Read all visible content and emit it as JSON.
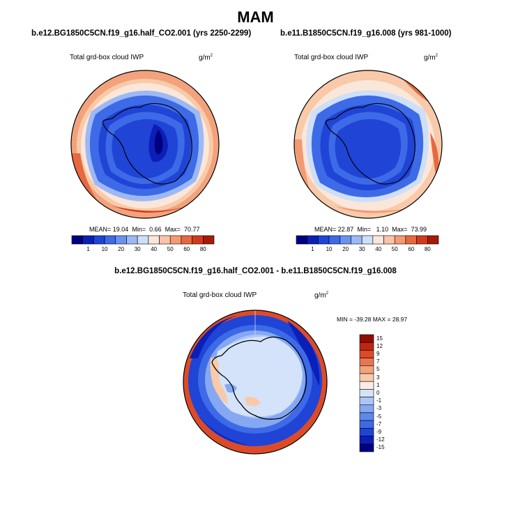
{
  "main_title": "MAM",
  "colors": {
    "levels_abs": [
      "#00007f",
      "#0b1fb8",
      "#1f44d6",
      "#3d6ae6",
      "#6a93f0",
      "#9db9f5",
      "#cddff9",
      "#fbe6da",
      "#f9c4a8",
      "#f39a72",
      "#e8683f",
      "#d33a1c",
      "#a61a0a"
    ],
    "levels_diff": [
      "#00007f",
      "#0b1fb8",
      "#1f44d6",
      "#3d6ae6",
      "#5f88ee",
      "#86a8f3",
      "#adc6f7",
      "#d4e3fa",
      "#fcece3",
      "#f8caa9",
      "#f3a27c",
      "#ea7650",
      "#dc4b28",
      "#bf2612",
      "#8f0e04"
    ],
    "continent_outline": "#000000"
  },
  "panels": [
    {
      "id": "left",
      "title": "b.e12.BG1850C5CN.f19_g16.half_CO2.001 (yrs 2250-2299)",
      "variable": "Total grd-box cloud IWP",
      "units": "g/m",
      "units_sup": "2",
      "stats": {
        "mean_label": "MEAN=",
        "mean": "19.04",
        "min_label": "Min=",
        "min": "0.66",
        "max_label": "Max=",
        "max": "70.77"
      }
    },
    {
      "id": "right",
      "title": "b.e11.B1850C5CN.f19_g16.008 (yrs 981-1000)",
      "variable": "Total grd-box cloud IWP",
      "units": "g/m",
      "units_sup": "2",
      "stats": {
        "mean_label": "MEAN=",
        "mean": "22.87",
        "min_label": "Min=",
        "min": "1.10",
        "max_label": "Max=",
        "max": "73.99"
      }
    },
    {
      "id": "diff",
      "title": "b.e12.BG1850C5CN.f19_g16.half_CO2.001 - b.e11.B1850C5CN.f19_g16.008",
      "variable": "Total grd-box cloud IWP",
      "units": "g/m",
      "units_sup": "2",
      "stats_text": "MIN = -39.28 MAX =  28.97"
    }
  ],
  "colorbar_abs_ticks": [
    "1",
    "10",
    "20",
    "30",
    "40",
    "50",
    "60",
    "80"
  ],
  "colorbar_diff_ticks": [
    "15",
    "12",
    "9",
    "7",
    "5",
    "3",
    "1",
    "0",
    "-1",
    "-3",
    "-5",
    "-7",
    "-9",
    "-12",
    "-15"
  ],
  "chart_data": [
    {
      "type": "heatmap",
      "projection": "south-polar-stereographic",
      "title": "b.e12.BG1850C5CN.f19_g16.half_CO2.001 (yrs 2250-2299)",
      "variable": "Total grd-box cloud IWP",
      "units": "g/m^2",
      "contour_levels": [
        1,
        5,
        10,
        15,
        20,
        25,
        30,
        35,
        40,
        45,
        50,
        60,
        70,
        80
      ],
      "mean": 19.04,
      "min": 0.66,
      "max": 70.77,
      "legend_position": "bottom"
    },
    {
      "type": "heatmap",
      "projection": "south-polar-stereographic",
      "title": "b.e11.B1850C5CN.f19_g16.008 (yrs 981-1000)",
      "variable": "Total grd-box cloud IWP",
      "units": "g/m^2",
      "contour_levels": [
        1,
        5,
        10,
        15,
        20,
        25,
        30,
        35,
        40,
        45,
        50,
        60,
        70,
        80
      ],
      "mean": 22.87,
      "min": 1.1,
      "max": 73.99,
      "legend_position": "bottom"
    },
    {
      "type": "heatmap",
      "projection": "south-polar-stereographic",
      "title": "b.e12.BG1850C5CN.f19_g16.half_CO2.001 - b.e11.B1850C5CN.f19_g16.008",
      "variable": "Total grd-box cloud IWP",
      "units": "g/m^2",
      "contour_levels": [
        -15,
        -12,
        -9,
        -7,
        -5,
        -3,
        -1,
        0,
        1,
        3,
        5,
        7,
        9,
        12,
        15
      ],
      "min": -39.28,
      "max": 28.97,
      "legend_position": "right"
    }
  ]
}
